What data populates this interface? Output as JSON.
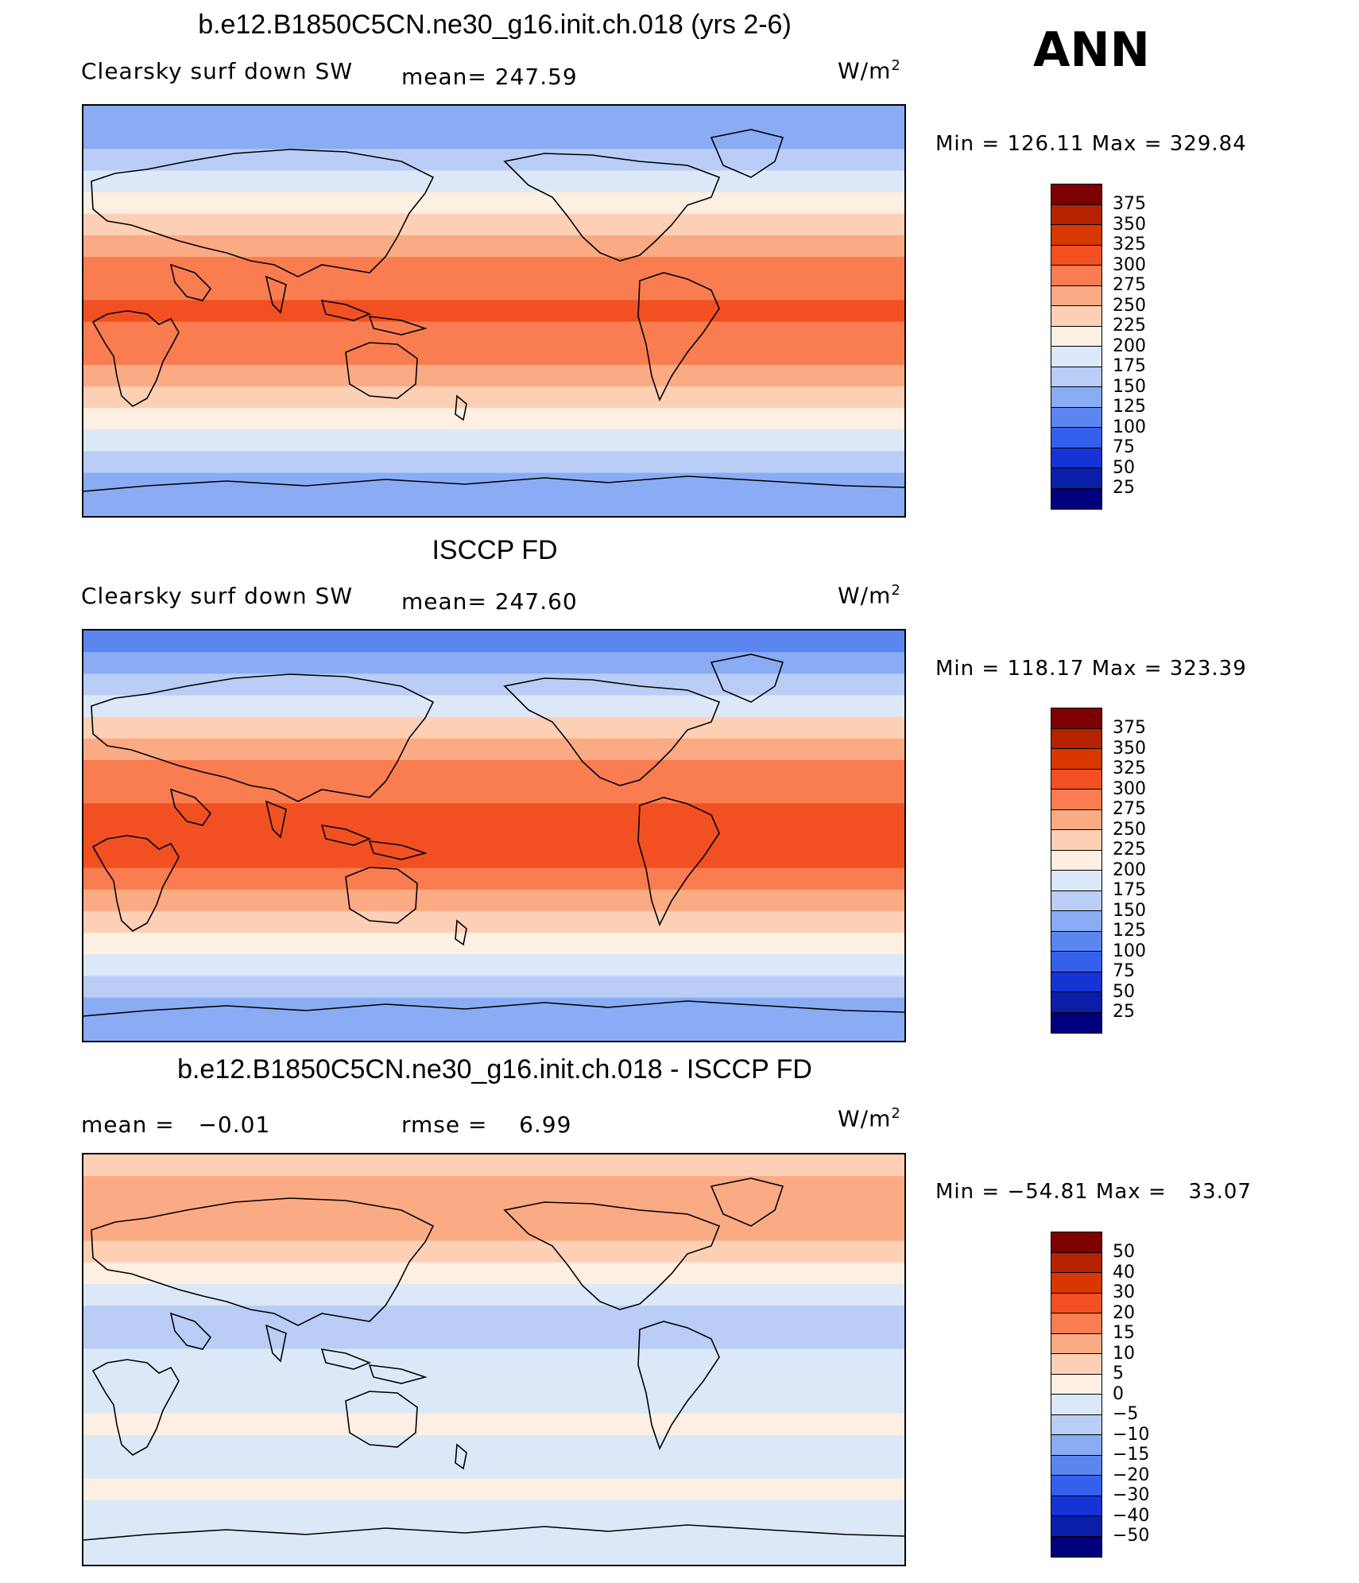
{
  "top_label": "ANN",
  "units_suffix": "W/m",
  "units_exp": "2",
  "panels": [
    {
      "title": "b.e12.B1850C5CN.ne30_g16.init.ch.018 (yrs 2-6)",
      "left_label": "Clearsky surf down SW",
      "mid_label": "mean= 247.59",
      "minmax": "Min = 126.11 Max = 329.84"
    },
    {
      "title": "ISCCP FD",
      "left_label": "Clearsky surf down SW",
      "mid_label": "mean= 247.60",
      "minmax": "Min = 118.17 Max = 323.39"
    },
    {
      "title": "b.e12.B1850C5CN.ne30_g16.init.ch.018 - ISCCP FD",
      "left_label": "mean =   −0.01",
      "mid_label": "rmse =    6.99",
      "minmax": "Min = −54.81 Max =   33.07"
    }
  ],
  "colorbars": {
    "absolute": {
      "levels": [
        "375",
        "350",
        "325",
        "300",
        "275",
        "250",
        "225",
        "200",
        "175",
        "150",
        "125",
        "100",
        "75",
        "50",
        "25"
      ],
      "colors": [
        "#7f0000",
        "#b42200",
        "#d83800",
        "#f25022",
        "#f97d50",
        "#fbab84",
        "#fdd0b6",
        "#fdefe1",
        "#dbe8f8",
        "#b9cdf6",
        "#8aacf5",
        "#5b86f0",
        "#3560ec",
        "#1634d6",
        "#0a1fa8",
        "#00007f"
      ]
    },
    "difference": {
      "levels": [
        "50",
        "40",
        "30",
        "20",
        "15",
        "10",
        "5",
        "0",
        "−5",
        "−10",
        "−15",
        "−20",
        "−30",
        "−40",
        "−50"
      ],
      "colors": [
        "#7f0000",
        "#b42200",
        "#d83800",
        "#f25022",
        "#f97d50",
        "#fbab84",
        "#fdd0b6",
        "#fdefe1",
        "#dbe8f8",
        "#b9cdf6",
        "#8aacf5",
        "#5b86f0",
        "#3560ec",
        "#1634d6",
        "#0a1fa8",
        "#00007f"
      ]
    }
  },
  "maps": [
    {
      "lat_band_colors": [
        "#8aacf5",
        "#8aacf5",
        "#b9cdf6",
        "#dbe8f8",
        "#fdefe1",
        "#fdd0b6",
        "#fbab84",
        "#f97d50",
        "#f97d50",
        "#f25022",
        "#f97d50",
        "#f97d50",
        "#fbab84",
        "#fdd0b6",
        "#fdefe1",
        "#dbe8f8",
        "#b9cdf6",
        "#8aacf5",
        "#8aacf5"
      ]
    },
    {
      "lat_band_colors": [
        "#5b86f0",
        "#8aacf5",
        "#b9cdf6",
        "#dbe8f8",
        "#fdd0b6",
        "#fbab84",
        "#f97d50",
        "#f97d50",
        "#f25022",
        "#f25022",
        "#f25022",
        "#f97d50",
        "#fbab84",
        "#fdd0b6",
        "#fdefe1",
        "#dbe8f8",
        "#b9cdf6",
        "#8aacf5",
        "#8aacf5"
      ]
    },
    {
      "lat_band_colors": [
        "#fdd0b6",
        "#fbab84",
        "#fbab84",
        "#fbab84",
        "#fdd0b6",
        "#fdefe1",
        "#dbe8f8",
        "#b9cdf6",
        "#b9cdf6",
        "#dbe8f8",
        "#dbe8f8",
        "#dbe8f8",
        "#fdefe1",
        "#dbe8f8",
        "#dbe8f8",
        "#fdefe1",
        "#dbe8f8",
        "#dbe8f8",
        "#dbe8f8"
      ]
    }
  ]
}
